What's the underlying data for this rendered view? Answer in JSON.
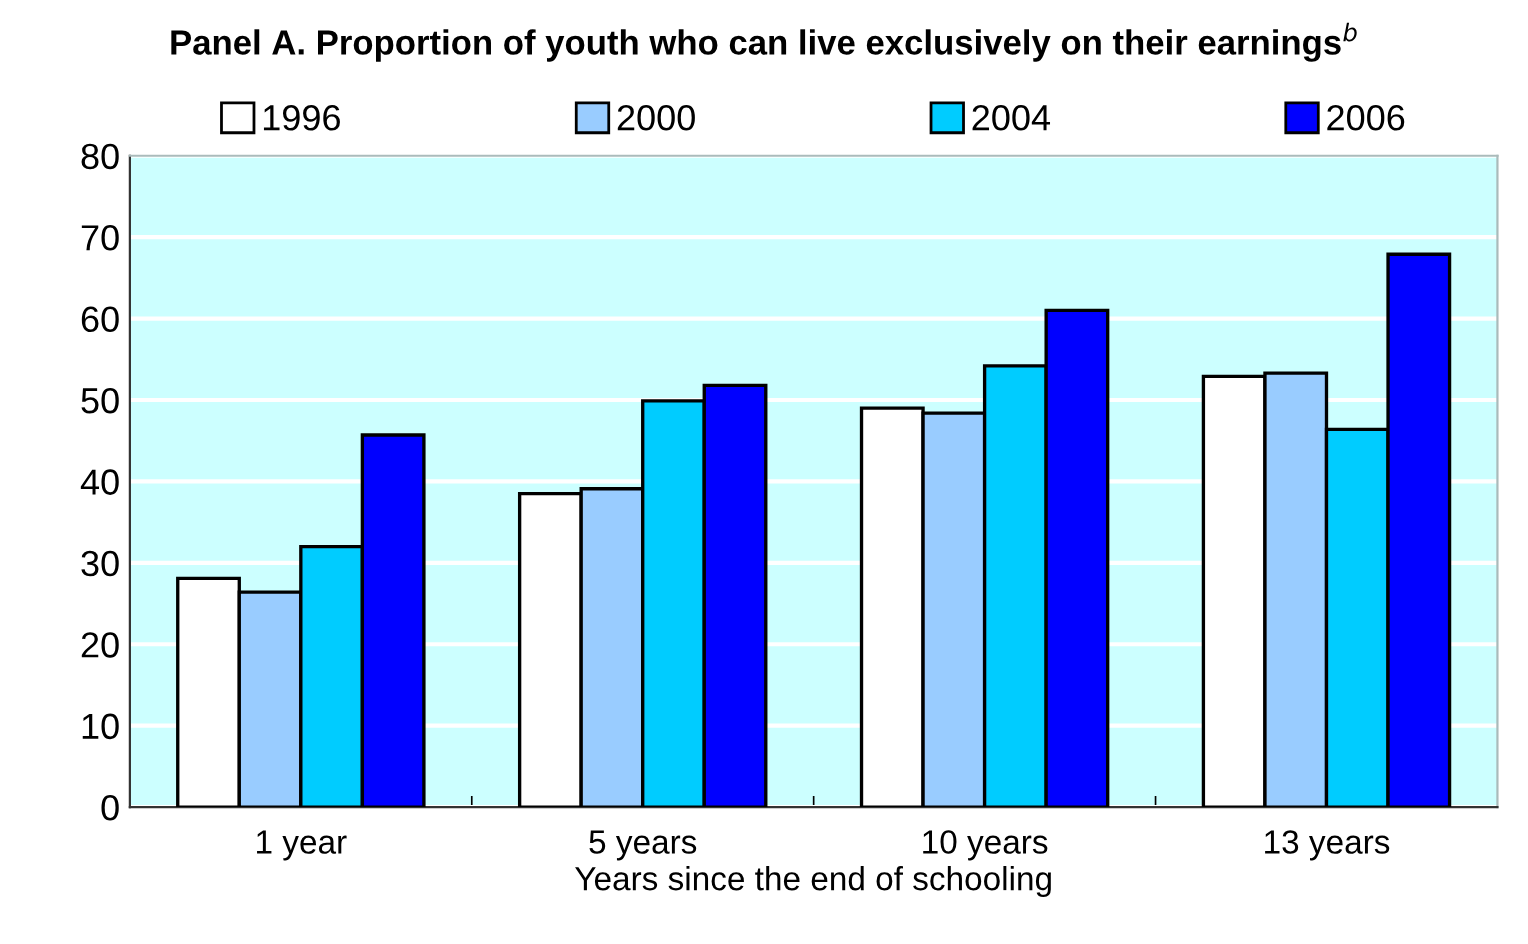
{
  "chart_data": {
    "type": "bar",
    "title": "Panel A. Proportion of youth who can live exclusively on their earnings$^{b}$",
    "xlabel": "Years since the end of schooling",
    "categories": [
      "1 year",
      "5 years",
      "10 years",
      "13 years"
    ],
    "series": [
      {
        "name": "1996",
        "color": "#ffffff",
        "values": [
          28.1,
          38.5,
          49.0,
          52.9
        ]
      },
      {
        "name": "2000",
        "color": "#99ccff",
        "values": [
          26.4,
          39.1,
          48.4,
          53.3
        ]
      },
      {
        "name": "2004",
        "color": "#00ccff",
        "values": [
          32.0,
          49.9,
          54.2,
          46.4
        ]
      },
      {
        "name": "2006",
        "color": "#0000ff",
        "values": [
          45.7,
          51.8,
          61.0,
          67.9
        ]
      }
    ],
    "ylim": [
      0,
      80
    ],
    "yticks": [
      0,
      10,
      20,
      30,
      40,
      50,
      60,
      70,
      80
    ],
    "grid": "y",
    "legend": "top"
  }
}
